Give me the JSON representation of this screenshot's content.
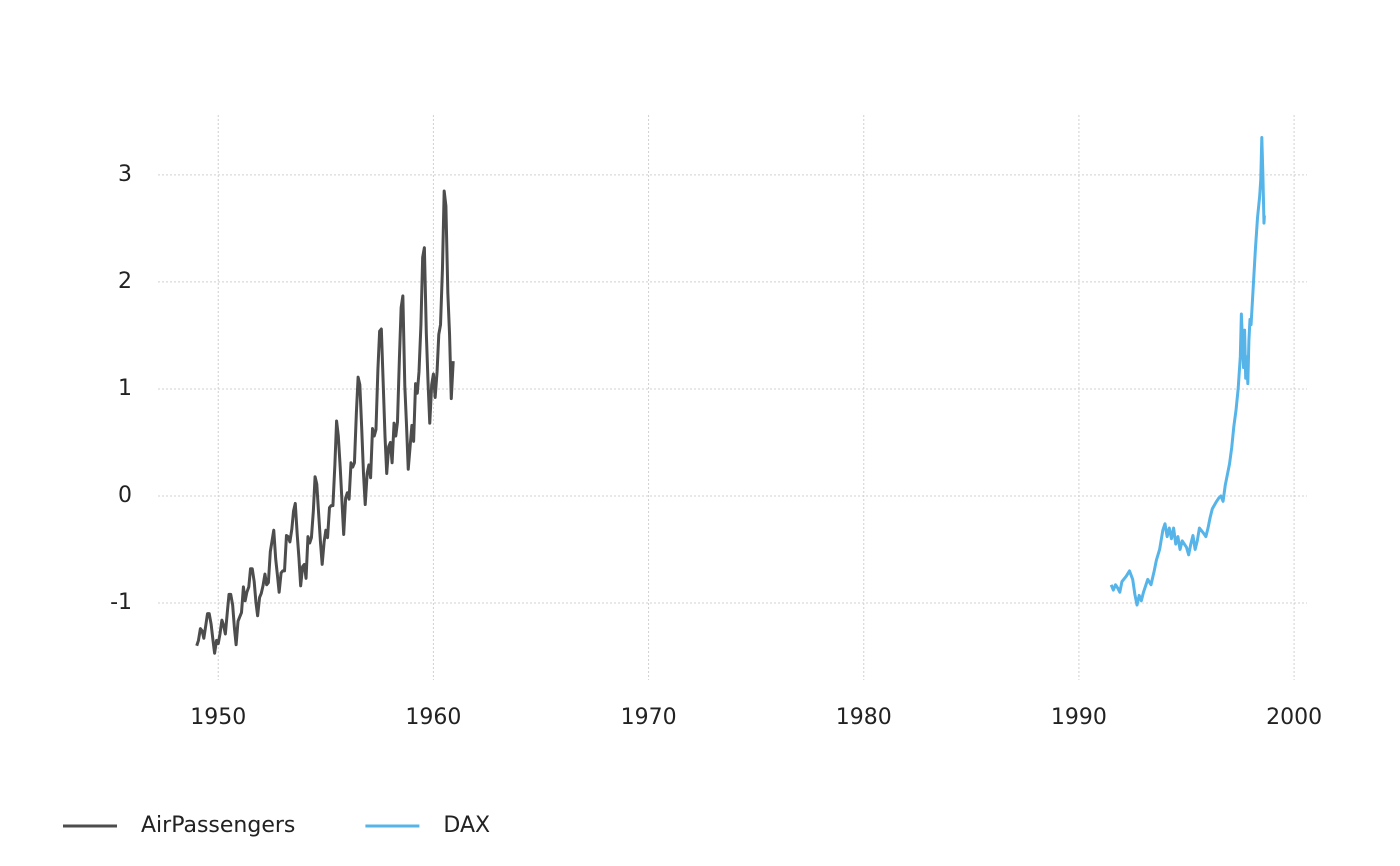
{
  "chart_data": {
    "type": "line",
    "xlim": [
      1947.2,
      2000.6
    ],
    "xticks": [
      1950,
      1960,
      1970,
      1980,
      1990,
      2000
    ],
    "ylim": [
      -1.72,
      3.56
    ],
    "yticks": [
      -1,
      0,
      1,
      2,
      3
    ],
    "grid": true,
    "legend": "bottom-left",
    "series": [
      {
        "name": "AirPassengers",
        "color": "#4d4d4d",
        "x": [
          1949.0,
          1949.08,
          1949.17,
          1949.25,
          1949.33,
          1949.42,
          1949.5,
          1949.58,
          1949.67,
          1949.75,
          1949.83,
          1949.92,
          1950.0,
          1950.08,
          1950.17,
          1950.25,
          1950.33,
          1950.42,
          1950.5,
          1950.58,
          1950.67,
          1950.75,
          1950.83,
          1950.92,
          1951.0,
          1951.08,
          1951.17,
          1951.25,
          1951.33,
          1951.42,
          1951.5,
          1951.58,
          1951.67,
          1951.75,
          1951.83,
          1951.92,
          1952.0,
          1952.08,
          1952.17,
          1952.25,
          1952.33,
          1952.42,
          1952.5,
          1952.58,
          1952.67,
          1952.75,
          1952.83,
          1952.92,
          1953.0,
          1953.08,
          1953.17,
          1953.25,
          1953.33,
          1953.42,
          1953.5,
          1953.58,
          1953.67,
          1953.75,
          1953.83,
          1953.92,
          1954.0,
          1954.08,
          1954.17,
          1954.25,
          1954.33,
          1954.42,
          1954.5,
          1954.58,
          1954.67,
          1954.75,
          1954.83,
          1954.92,
          1955.0,
          1955.08,
          1955.17,
          1955.25,
          1955.33,
          1955.42,
          1955.5,
          1955.58,
          1955.67,
          1955.75,
          1955.83,
          1955.92,
          1956.0,
          1956.08,
          1956.17,
          1956.25,
          1956.33,
          1956.42,
          1956.5,
          1956.58,
          1956.67,
          1956.75,
          1956.83,
          1956.92,
          1957.0,
          1957.08,
          1957.17,
          1957.25,
          1957.33,
          1957.42,
          1957.5,
          1957.58,
          1957.67,
          1957.75,
          1957.83,
          1957.92,
          1958.0,
          1958.08,
          1958.17,
          1958.25,
          1958.33,
          1958.42,
          1958.5,
          1958.58,
          1958.67,
          1958.75,
          1958.83,
          1958.92,
          1959.0,
          1959.08,
          1959.17,
          1959.25,
          1959.33,
          1959.42,
          1959.5,
          1959.58,
          1959.67,
          1959.75,
          1959.83,
          1959.92,
          1960.0,
          1960.08,
          1960.17,
          1960.25,
          1960.33,
          1960.42,
          1960.5,
          1960.58,
          1960.67,
          1960.75,
          1960.83,
          1960.92
        ],
        "values": [
          -1.4,
          -1.35,
          -1.24,
          -1.26,
          -1.33,
          -1.21,
          -1.1,
          -1.1,
          -1.2,
          -1.34,
          -1.47,
          -1.35,
          -1.38,
          -1.29,
          -1.16,
          -1.21,
          -1.29,
          -1.09,
          -0.92,
          -0.92,
          -1.02,
          -1.23,
          -1.39,
          -1.17,
          -1.13,
          -1.09,
          -0.85,
          -0.98,
          -0.9,
          -0.85,
          -0.68,
          -0.68,
          -0.8,
          -0.99,
          -1.12,
          -0.95,
          -0.91,
          -0.84,
          -0.73,
          -0.83,
          -0.81,
          -0.52,
          -0.42,
          -0.32,
          -0.59,
          -0.74,
          -0.9,
          -0.72,
          -0.7,
          -0.7,
          -0.37,
          -0.38,
          -0.43,
          -0.31,
          -0.14,
          -0.07,
          -0.36,
          -0.58,
          -0.84,
          -0.66,
          -0.64,
          -0.77,
          -0.38,
          -0.44,
          -0.39,
          -0.14,
          0.18,
          0.11,
          -0.18,
          -0.43,
          -0.64,
          -0.43,
          -0.32,
          -0.39,
          -0.11,
          -0.09,
          -0.09,
          0.29,
          0.7,
          0.56,
          0.26,
          -0.05,
          -0.36,
          -0.02,
          0.03,
          -0.03,
          0.31,
          0.27,
          0.31,
          0.78,
          1.11,
          1.04,
          0.62,
          0.21,
          -0.08,
          0.21,
          0.29,
          0.17,
          0.63,
          0.56,
          0.62,
          1.18,
          1.54,
          1.56,
          1.03,
          0.56,
          0.21,
          0.46,
          0.5,
          0.31,
          0.68,
          0.56,
          0.69,
          1.29,
          1.76,
          1.87,
          1.03,
          0.66,
          0.25,
          0.47,
          0.66,
          0.51,
          1.05,
          0.96,
          1.16,
          1.6,
          2.23,
          2.32,
          1.52,
          1.06,
          0.68,
          1.04,
          1.14,
          0.92,
          1.16,
          1.51,
          1.6,
          2.12,
          2.85,
          2.71,
          1.9,
          1.51,
          0.91,
          1.26
        ]
      },
      {
        "name": "DAX",
        "color": "#56b4e9",
        "x": [
          1991.5,
          1991.6,
          1991.7,
          1991.8,
          1991.9,
          1992.0,
          1992.2,
          1992.35,
          1992.5,
          1992.6,
          1992.7,
          1992.8,
          1992.9,
          1993.0,
          1993.2,
          1993.35,
          1993.5,
          1993.6,
          1993.75,
          1993.9,
          1994.0,
          1994.1,
          1994.2,
          1994.3,
          1994.4,
          1994.5,
          1994.6,
          1994.7,
          1994.8,
          1995.0,
          1995.1,
          1995.2,
          1995.3,
          1995.4,
          1995.5,
          1995.6,
          1995.8,
          1995.9,
          1996.0,
          1996.1,
          1996.2,
          1996.4,
          1996.5,
          1996.6,
          1996.7,
          1996.8,
          1996.9,
          1997.0,
          1997.1,
          1997.2,
          1997.3,
          1997.4,
          1997.5,
          1997.55,
          1997.6,
          1997.65,
          1997.7,
          1997.75,
          1997.8,
          1997.85,
          1997.9,
          1997.95,
          1998.0,
          1998.1,
          1998.2,
          1998.3,
          1998.4,
          1998.45,
          1998.5,
          1998.55,
          1998.6,
          1998.62
        ],
        "values": [
          -0.83,
          -0.88,
          -0.83,
          -0.86,
          -0.9,
          -0.8,
          -0.75,
          -0.7,
          -0.78,
          -0.92,
          -1.02,
          -0.93,
          -0.98,
          -0.9,
          -0.78,
          -0.83,
          -0.7,
          -0.6,
          -0.5,
          -0.32,
          -0.26,
          -0.38,
          -0.3,
          -0.4,
          -0.3,
          -0.45,
          -0.38,
          -0.5,
          -0.42,
          -0.48,
          -0.55,
          -0.45,
          -0.37,
          -0.5,
          -0.42,
          -0.3,
          -0.35,
          -0.38,
          -0.3,
          -0.2,
          -0.12,
          -0.05,
          -0.02,
          0.0,
          -0.05,
          0.1,
          0.2,
          0.3,
          0.45,
          0.65,
          0.8,
          1.0,
          1.3,
          1.7,
          1.45,
          1.2,
          1.55,
          1.1,
          1.3,
          1.05,
          1.45,
          1.65,
          1.6,
          1.95,
          2.3,
          2.6,
          2.8,
          2.95,
          3.35,
          3.0,
          2.55,
          2.62
        ]
      }
    ]
  }
}
